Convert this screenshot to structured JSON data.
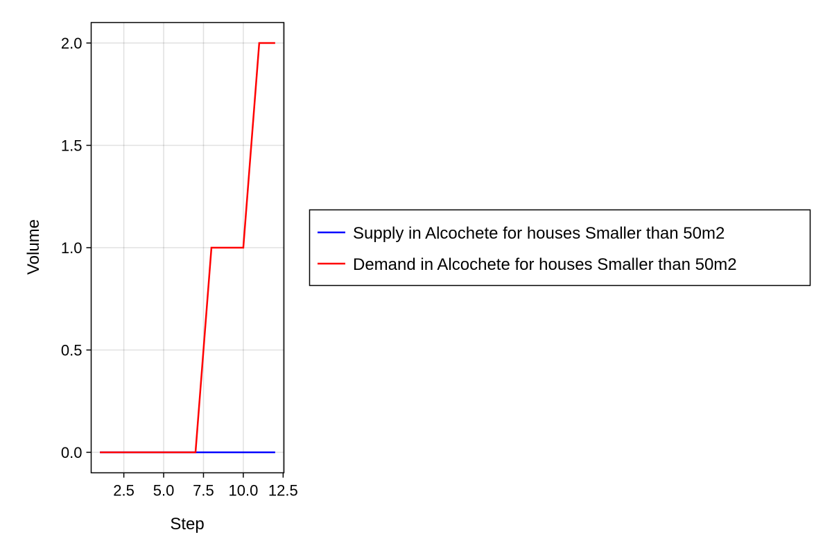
{
  "chart_data": {
    "type": "line",
    "xlabel": "Step",
    "ylabel": "Volume",
    "xlim": [
      0.45,
      12.55
    ],
    "ylim": [
      -0.1,
      2.1
    ],
    "xticks": [
      2.5,
      5.0,
      7.5,
      10.0,
      12.5
    ],
    "xtick_labels": [
      "2.5",
      "5.0",
      "7.5",
      "10.0",
      "12.5"
    ],
    "yticks": [
      0.0,
      0.5,
      1.0,
      1.5,
      2.0
    ],
    "ytick_labels": [
      "0.0",
      "0.5",
      "1.0",
      "1.5",
      "2.0"
    ],
    "grid": true,
    "legend_position": "right",
    "x": [
      1,
      2,
      3,
      4,
      5,
      6,
      7,
      8,
      9,
      10,
      11,
      12
    ],
    "series": [
      {
        "name": "Supply in Alcochete for houses Smaller than 50m2",
        "color": "#0000ff",
        "values": [
          0,
          0,
          0,
          0,
          0,
          0,
          0,
          0,
          0,
          0,
          0,
          0
        ]
      },
      {
        "name": "Demand in Alcochete for houses Smaller than 50m2",
        "color": "#ff0000",
        "values": [
          0,
          0,
          0,
          0,
          0,
          0,
          0,
          1,
          1,
          1,
          2,
          2
        ]
      }
    ]
  }
}
